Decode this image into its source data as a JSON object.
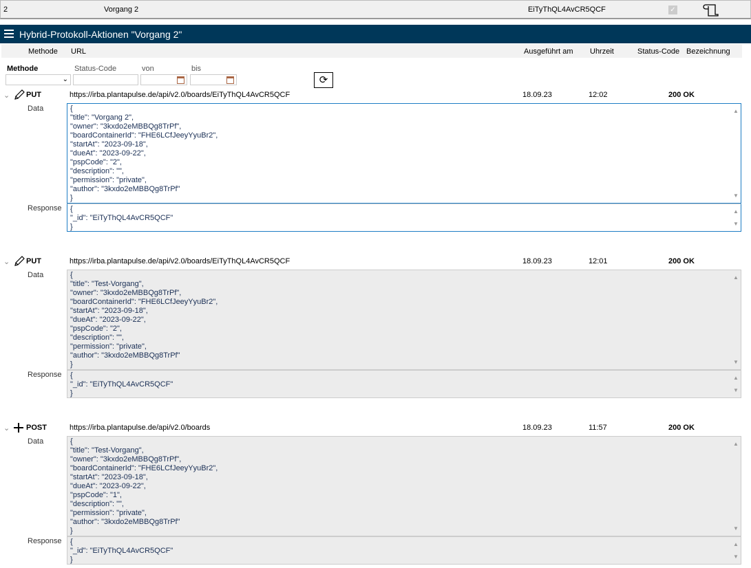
{
  "top_row": {
    "nr": "2",
    "name": "Vorgang 2",
    "id": "EiTyThQL4AvCR5QCF",
    "checked": true
  },
  "title": "Hybrid-Protokoll-Aktionen \"Vorgang 2\"",
  "columns": [
    "Methode",
    "URL",
    "Ausgeführt am",
    "Uhrzeit",
    "Status-Code",
    "Bezeichnung"
  ],
  "filters": {
    "methode": "Methode",
    "status": "Status-Code",
    "von": "von",
    "bis": "bis",
    "methode_value": "",
    "status_value": "",
    "von_value": "",
    "bis_value": ""
  },
  "labels": {
    "data": "Data",
    "response": "Response"
  },
  "entries": [
    {
      "method": "PUT",
      "icon": "pencil-icon",
      "url": "https://irba.plantapulse.de/api/v2.0/boards/EiTyThQL4AvCR5QCF",
      "date": "18.09.23",
      "time": "12:02",
      "status": "200 OK",
      "data": "{\n\"title\": \"Vorgang 2\",\n\"owner\": \"3kxdo2eMBBQg8TrPf\",\n\"boardContainerId\": \"FHE6LCfJeeyYyuBr2\",\n\"startAt\": \"2023-09-18\",\n\"dueAt\": \"2023-09-22\",\n\"pspCode\": \"2\",\n\"description\": \"\",\n\"permission\": \"private\",\n\"author\": \"3kxdo2eMBBQg8TrPf\"\n}",
      "response": "{\n\"_id\": \"EiTyThQL4AvCR5QCF\"\n}"
    },
    {
      "method": "PUT",
      "icon": "pencil-icon",
      "url": "https://irba.plantapulse.de/api/v2.0/boards/EiTyThQL4AvCR5QCF",
      "date": "18.09.23",
      "time": "12:01",
      "status": "200 OK",
      "data": "{\n\"title\": \"Test-Vorgang\",\n\"owner\": \"3kxdo2eMBBQg8TrPf\",\n\"boardContainerId\": \"FHE6LCfJeeyYyuBr2\",\n\"startAt\": \"2023-09-18\",\n\"dueAt\": \"2023-09-22\",\n\"pspCode\": \"2\",\n\"description\": \"\",\n\"permission\": \"private\",\n\"author\": \"3kxdo2eMBBQg8TrPf\"\n}",
      "response": "{\n\"_id\": \"EiTyThQL4AvCR5QCF\"\n}"
    },
    {
      "method": "POST",
      "icon": "plus-icon",
      "url": "https://irba.plantapulse.de/api/v2.0/boards",
      "date": "18.09.23",
      "time": "11:57",
      "status": "200 OK",
      "data": "{\n\"title\": \"Test-Vorgang\",\n\"owner\": \"3kxdo2eMBBQg8TrPf\",\n\"boardContainerId\": \"FHE6LCfJeeyYyuBr2\",\n\"startAt\": \"2023-09-18\",\n\"dueAt\": \"2023-09-22\",\n\"pspCode\": \"1\",\n\"description\": \"\",\n\"permission\": \"private\",\n\"author\": \"3kxdo2eMBBQg8TrPf\"\n}",
      "response": "{\n\"_id\": \"EiTyThQL4AvCR5QCF\"\n}"
    }
  ]
}
